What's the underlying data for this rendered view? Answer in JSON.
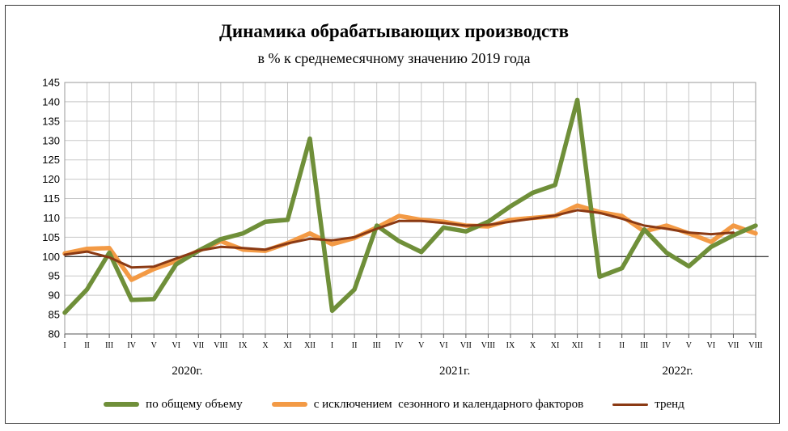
{
  "title": "Динамика обрабатывающих производств",
  "subtitle": "в % к среднемесячному значению 2019 года",
  "colors": {
    "total": "#6f8f39",
    "adjusted": "#f39a45",
    "trend": "#8b3a14",
    "grid": "#c8c8c8",
    "baseline": "#000000"
  },
  "chart_data": {
    "type": "line",
    "title": "Динамика обрабатывающих производств",
    "subtitle": "в % к среднемесячному значению 2019 года",
    "ylim": [
      80,
      145
    ],
    "yticks": [
      80,
      85,
      90,
      95,
      100,
      105,
      110,
      115,
      120,
      125,
      130,
      135,
      140,
      145
    ],
    "grid": true,
    "reference_line": 100,
    "legend_position": "bottom",
    "categories": [
      "I",
      "II",
      "III",
      "IV",
      "V",
      "VI",
      "VII",
      "VIII",
      "IX",
      "X",
      "XI",
      "XII",
      "I",
      "II",
      "III",
      "IV",
      "V",
      "VI",
      "VII",
      "VIII",
      "IX",
      "X",
      "XI",
      "XII",
      "I",
      "II",
      "III",
      "IV",
      "V",
      "VI",
      "VII",
      "VIII"
    ],
    "years": [
      {
        "label": "2020г.",
        "start": 0,
        "end": 11
      },
      {
        "label": "2021г.",
        "start": 12,
        "end": 23
      },
      {
        "label": "2022г.",
        "start": 24,
        "end": 31
      }
    ],
    "series": [
      {
        "name": "по общему объему",
        "color": "#6f8f39",
        "values": [
          85.5,
          91.5,
          101,
          88.8,
          89,
          98,
          101.5,
          104.5,
          106,
          109,
          109.5,
          130.5,
          86,
          91.5,
          108,
          104,
          101.2,
          107.5,
          106.5,
          109,
          113,
          116.5,
          118.5,
          140.5,
          94.8,
          97,
          107,
          101,
          97.5,
          102.5,
          105.5,
          108
        ]
      },
      {
        "name": "с исключением  сезонного и календарного факторов",
        "color": "#f39a45",
        "values": [
          100.8,
          102,
          102.2,
          94,
          96.8,
          98.8,
          101.5,
          104,
          101.8,
          101.5,
          103.5,
          106,
          103.2,
          104.8,
          107.5,
          110.5,
          109.5,
          109,
          108,
          107.8,
          109.5,
          110,
          110.5,
          113.2,
          111.5,
          110.5,
          106.5,
          108,
          106,
          103.8,
          108,
          106
        ]
      },
      {
        "name": "тренд",
        "color": "#8b3a14",
        "values": [
          100.5,
          101.3,
          99.8,
          97.2,
          97.4,
          99.5,
          101.5,
          102.5,
          102.2,
          101.8,
          103.4,
          104.6,
          104.2,
          105,
          107.2,
          109.2,
          109.2,
          108.7,
          108,
          108.2,
          109,
          109.8,
          110.6,
          112,
          111.3,
          109.8,
          108,
          107.2,
          106.2,
          105.8,
          106.2,
          null
        ]
      }
    ]
  }
}
